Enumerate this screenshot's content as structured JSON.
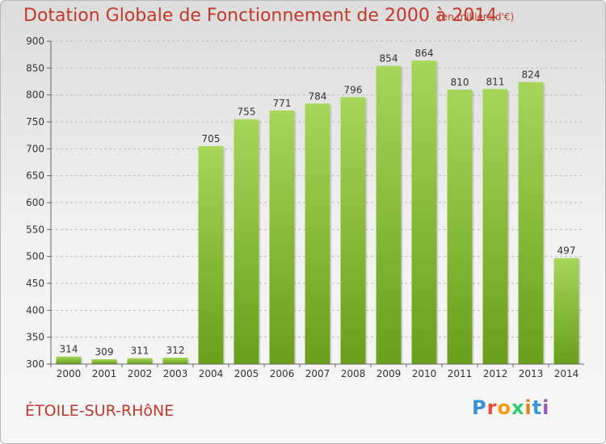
{
  "title": "Dotation Globale de Fonctionnement de 2000 à 2014",
  "unit_note": "(en milliers d'€)",
  "town": "ÉTOILE-SUR-RHôNE",
  "logo": {
    "text": "Proxiti",
    "letter_colors": [
      "#3a8fd8",
      "#e74c3c",
      "#f39c12",
      "#2ecc71",
      "#e67e22",
      "#3498db",
      "#9b59b6"
    ]
  },
  "colors": {
    "title": "#c0392b",
    "bar_top": "#a6d65a",
    "bar_bottom": "#6a9e1c",
    "grid": "#bbbbbb",
    "axis_text": "#333333"
  },
  "chart_data": {
    "type": "bar",
    "categories": [
      "2000",
      "2001",
      "2002",
      "2003",
      "2004",
      "2005",
      "2006",
      "2007",
      "2008",
      "2009",
      "2010",
      "2011",
      "2012",
      "2013",
      "2014"
    ],
    "values": [
      314,
      309,
      311,
      312,
      705,
      755,
      771,
      784,
      796,
      854,
      864,
      810,
      811,
      824,
      497
    ],
    "ylim": [
      300,
      900
    ],
    "yticks": [
      300,
      350,
      400,
      450,
      500,
      550,
      600,
      650,
      700,
      750,
      800,
      850,
      900
    ],
    "grid": true,
    "data_labels": true
  }
}
